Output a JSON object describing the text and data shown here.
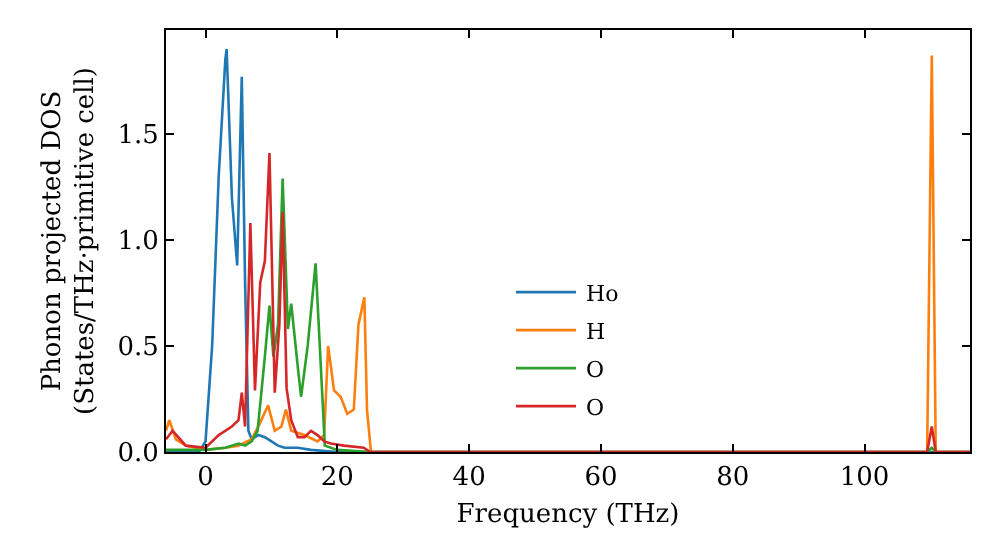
{
  "chart_data": {
    "type": "line",
    "xlabel": "Frequency (THz)",
    "ylabel": "Phonon projected DOS\n(States/THz·primitive cell)",
    "xlim": [
      -6,
      116
    ],
    "xticks": [
      0,
      20,
      40,
      60,
      80,
      100
    ],
    "ylim": [
      0,
      1.99
    ],
    "yticks": [
      {
        "value": 0,
        "label": "0.0"
      },
      {
        "value": 0.5,
        "label": "0.5"
      },
      {
        "value": 1,
        "label": "1.0"
      },
      {
        "value": 1.5,
        "label": "1.5"
      }
    ],
    "grid": false,
    "legend": "bottom",
    "marker": "none",
    "line_style": "solid",
    "series": [
      {
        "name": "Ho",
        "color": "#1f77b4",
        "x": [
          -6,
          -1,
          0,
          1,
          2,
          3,
          3.2,
          4,
          4.8,
          5.5,
          6,
          6.5,
          7,
          8,
          9,
          10,
          11,
          12,
          14,
          16,
          20,
          25,
          110,
          116
        ],
        "values": [
          0,
          0,
          0.05,
          0.5,
          1.3,
          1.85,
          1.9,
          1.2,
          0.88,
          1.77,
          0.8,
          0.1,
          0.06,
          0.08,
          0.07,
          0.05,
          0.03,
          0.02,
          0.02,
          0.01,
          0,
          0,
          0,
          0
        ]
      },
      {
        "name": "H",
        "color": "#ff7f0e",
        "x": [
          -6,
          -5.5,
          -4.5,
          -3,
          0,
          3,
          5,
          7,
          8,
          9.5,
          10.5,
          11.5,
          12.2,
          13,
          15,
          17,
          18,
          18.6,
          19.5,
          20.5,
          21.5,
          22.5,
          23.2,
          24.1,
          24.5,
          25.1,
          109.5,
          110.2,
          110.8,
          116
        ],
        "values": [
          0.1,
          0.15,
          0.06,
          0.03,
          0.01,
          0.02,
          0.03,
          0.06,
          0.12,
          0.22,
          0.1,
          0.12,
          0.2,
          0.1,
          0.08,
          0.05,
          0.08,
          0.5,
          0.29,
          0.26,
          0.18,
          0.2,
          0.6,
          0.73,
          0.2,
          0,
          0,
          1.87,
          0,
          0
        ]
      },
      {
        "name": "O",
        "color": "#2ca02c",
        "x": [
          -6,
          0,
          3,
          5,
          6,
          7,
          7.9,
          9,
          9.7,
          10.3,
          11,
          11.7,
          12.5,
          13,
          14,
          14.5,
          15.5,
          16.7,
          17.5,
          18.1,
          20,
          25,
          109.5,
          110.2,
          110.8,
          116
        ],
        "values": [
          0.01,
          0.01,
          0.02,
          0.04,
          0.03,
          0.05,
          0.1,
          0.45,
          0.69,
          0.45,
          0.6,
          1.29,
          0.58,
          0.7,
          0.4,
          0.26,
          0.5,
          0.89,
          0.4,
          0.03,
          0.01,
          0,
          0,
          0.02,
          0,
          0
        ]
      },
      {
        "name": "O",
        "color": "#d62728",
        "x": [
          -6,
          -5,
          -3,
          0,
          2,
          4,
          5,
          5.5,
          6,
          6.8,
          7.5,
          8.3,
          9,
          9.7,
          10.5,
          11.2,
          11.7,
          12.3,
          13,
          14,
          15,
          16,
          17,
          18,
          19,
          21,
          24,
          25,
          109.5,
          110.2,
          110.8,
          116
        ],
        "values": [
          0.06,
          0.1,
          0.03,
          0.02,
          0.08,
          0.12,
          0.15,
          0.28,
          0.12,
          1.08,
          0.29,
          0.8,
          0.9,
          1.41,
          0.28,
          0.6,
          1.13,
          0.3,
          0.15,
          0.07,
          0.07,
          0.1,
          0.08,
          0.05,
          0.04,
          0.03,
          0.02,
          0,
          0,
          0.12,
          0,
          0
        ]
      }
    ]
  }
}
